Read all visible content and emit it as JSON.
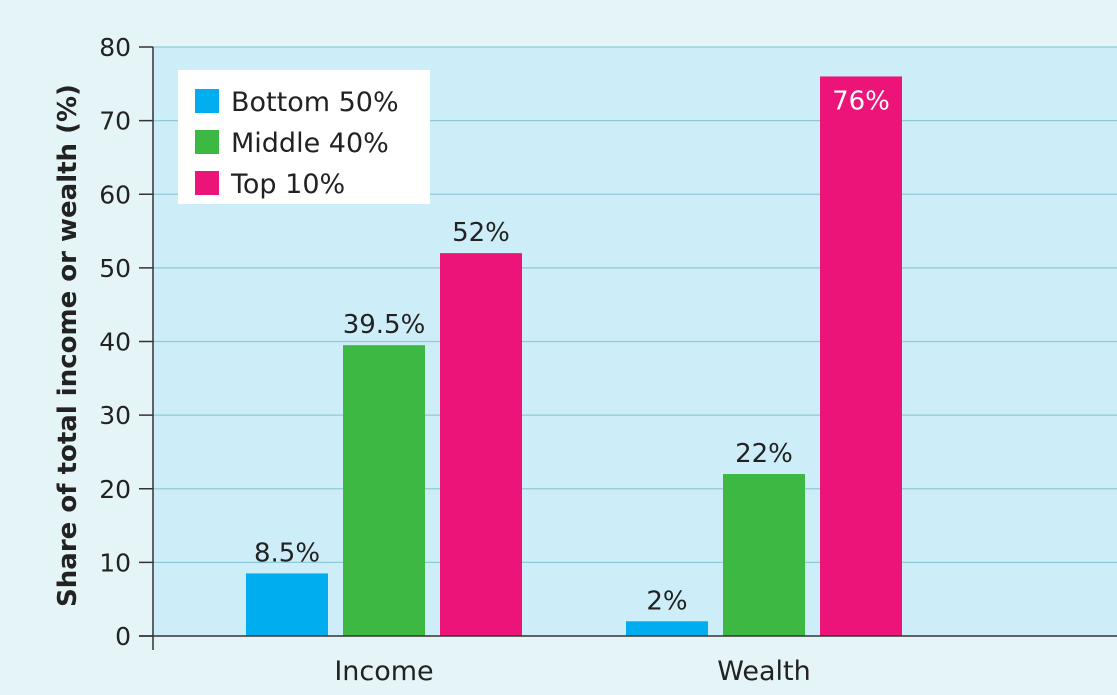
{
  "chart_data": {
    "type": "bar",
    "title": "",
    "xlabel": "",
    "ylabel": "Share of total income or wealth (%)",
    "ylim": [
      0,
      80
    ],
    "yticks": [
      0,
      10,
      20,
      30,
      40,
      50,
      60,
      70,
      80
    ],
    "grid": true,
    "legend_position": "top-left",
    "categories": [
      "Income",
      "Wealth"
    ],
    "series": [
      {
        "name": "Bottom 50%",
        "color": "#00aeef",
        "values": [
          8.5,
          2
        ],
        "labels": [
          "8.5%",
          "2%"
        ]
      },
      {
        "name": "Middle 40%",
        "color": "#3db843",
        "values": [
          39.5,
          22
        ],
        "labels": [
          "39.5%",
          "22%"
        ]
      },
      {
        "name": "Top 10%",
        "color": "#ed1479",
        "values": [
          52,
          76
        ],
        "labels": [
          "52%",
          "76%"
        ]
      }
    ],
    "colors": {
      "plot_background": "#cdeef8",
      "page_background": "#e4f4f7",
      "gridline": "#8fc9d6",
      "axis": "#333333"
    }
  }
}
